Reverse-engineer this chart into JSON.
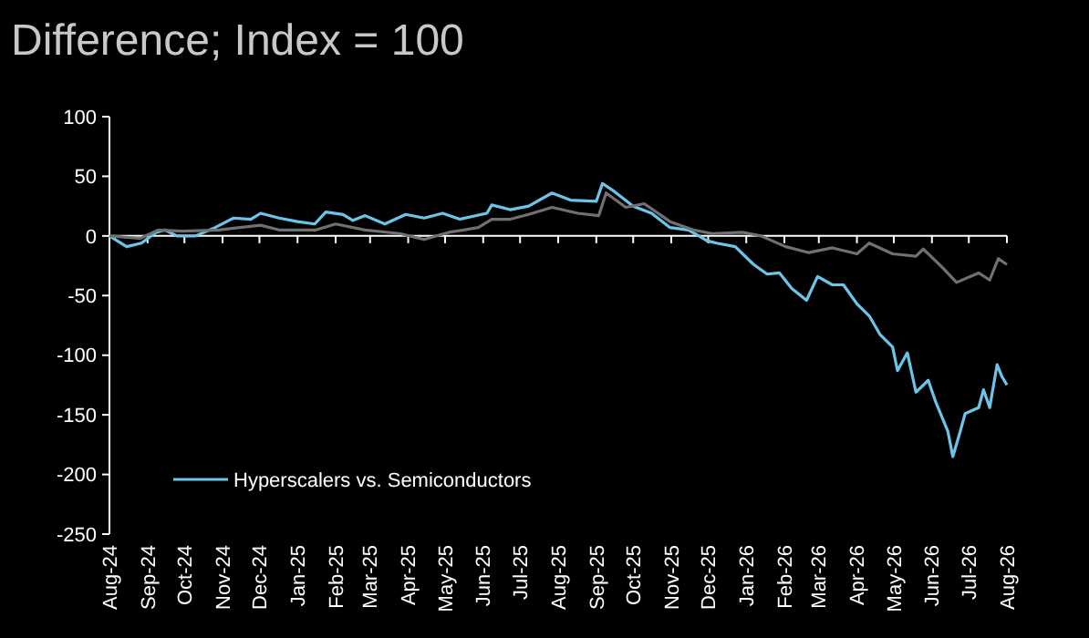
{
  "chart_data": {
    "type": "line",
    "title": "Difference; Index = 100",
    "ylim": [
      -250,
      100
    ],
    "yticks": [
      -250,
      -200,
      -150,
      -100,
      -50,
      0,
      50,
      100
    ],
    "xlim": [
      "2024-08-01",
      "2026-08-01"
    ],
    "xticks": [
      {
        "value": "2024-08-01",
        "label": "Aug-24"
      },
      {
        "value": "2024-09-01",
        "label": "Sep-24"
      },
      {
        "value": "2024-10-01",
        "label": "Oct-24"
      },
      {
        "value": "2024-11-01",
        "label": "Nov-24"
      },
      {
        "value": "2024-12-01",
        "label": "Dec-24"
      },
      {
        "value": "2025-01-01",
        "label": "Jan-25"
      },
      {
        "value": "2025-02-01",
        "label": "Feb-25"
      },
      {
        "value": "2025-03-01",
        "label": "Mar-25"
      },
      {
        "value": "2025-04-01",
        "label": "Apr-25"
      },
      {
        "value": "2025-05-01",
        "label": "May-25"
      },
      {
        "value": "2025-06-01",
        "label": "Jun-25"
      },
      {
        "value": "2025-07-01",
        "label": "Jul-25"
      },
      {
        "value": "2025-08-01",
        "label": "Aug-25"
      },
      {
        "value": "2025-09-01",
        "label": "Sep-25"
      },
      {
        "value": "2025-10-01",
        "label": "Oct-25"
      },
      {
        "value": "2025-11-01",
        "label": "Nov-25"
      },
      {
        "value": "2025-12-01",
        "label": "Dec-25"
      },
      {
        "value": "2026-01-01",
        "label": "Jan-26"
      },
      {
        "value": "2026-02-01",
        "label": "Feb-26"
      },
      {
        "value": "2026-03-01",
        "label": "Mar-26"
      },
      {
        "value": "2026-04-01",
        "label": "Apr-26"
      },
      {
        "value": "2026-05-01",
        "label": "May-26"
      },
      {
        "value": "2026-06-01",
        "label": "Jun-26"
      },
      {
        "value": "2026-07-01",
        "label": "Jul-26"
      },
      {
        "value": "2026-08-01",
        "label": "Aug-26"
      }
    ],
    "legend": "bottom left",
    "series": [
      {
        "name": "Hyperscalers vs. Semiconductors",
        "color": "#6cc5e9",
        "x": [
          "2024-08-01",
          "2024-08-15",
          "2024-08-27",
          "2024-09-08",
          "2024-09-15",
          "2024-09-25",
          "2024-10-10",
          "2024-10-26",
          "2024-11-10",
          "2024-11-24",
          "2024-12-02",
          "2024-12-17",
          "2025-01-01",
          "2025-01-15",
          "2025-01-24",
          "2025-02-07",
          "2025-02-15",
          "2025-02-25",
          "2025-03-13",
          "2025-03-30",
          "2025-04-14",
          "2025-04-29",
          "2025-05-13",
          "2025-06-04",
          "2025-06-08",
          "2025-06-23",
          "2025-07-08",
          "2025-07-27",
          "2025-08-11",
          "2025-09-01",
          "2025-09-06",
          "2025-09-16",
          "2025-10-01",
          "2025-10-16",
          "2025-10-31",
          "2025-11-15",
          "2025-11-30",
          "2025-12-08",
          "2025-12-23",
          "2026-01-07",
          "2026-01-18",
          "2026-01-28",
          "2026-02-07",
          "2026-02-19",
          "2026-02-28",
          "2026-03-12",
          "2026-03-21",
          "2026-04-01",
          "2026-04-11",
          "2026-04-20",
          "2026-04-30",
          "2026-05-04",
          "2026-05-12",
          "2026-05-19",
          "2026-05-29",
          "2026-06-04",
          "2026-06-14",
          "2026-06-18",
          "2026-06-24",
          "2026-06-28",
          "2026-07-09",
          "2026-07-13",
          "2026-07-18",
          "2026-07-24",
          "2026-07-28",
          "2026-08-01"
        ],
        "values": [
          0,
          -9,
          -6,
          3,
          5,
          0,
          0,
          7,
          15,
          14,
          19,
          15,
          12,
          10,
          20,
          18,
          13,
          17,
          10,
          18,
          15,
          19,
          14,
          19,
          26,
          22,
          25,
          36,
          30,
          29,
          44,
          37,
          25,
          19,
          7,
          5,
          -4,
          -6,
          -9,
          -24,
          -32,
          -31,
          -44,
          -54,
          -34,
          -41,
          -41,
          -57,
          -67,
          -83,
          -93,
          -113,
          -98,
          -131,
          -121,
          -139,
          -164,
          -185,
          -164,
          -149,
          -144,
          -129,
          -144,
          -108,
          -118,
          -125
        ]
      },
      {
        "color": "#707070",
        "x": [
          "2024-08-01",
          "2024-08-26",
          "2024-09-10",
          "2024-09-29",
          "2024-10-29",
          "2024-12-02",
          "2024-12-17",
          "2025-01-16",
          "2025-02-01",
          "2025-02-25",
          "2025-03-25",
          "2025-04-14",
          "2025-05-04",
          "2025-05-28",
          "2025-06-08",
          "2025-06-23",
          "2025-07-08",
          "2025-07-27",
          "2025-08-17",
          "2025-09-03",
          "2025-09-09",
          "2025-09-25",
          "2025-10-10",
          "2025-10-31",
          "2025-11-19",
          "2025-12-04",
          "2025-12-29",
          "2026-01-13",
          "2026-02-02",
          "2026-02-21",
          "2026-03-12",
          "2026-04-01",
          "2026-04-11",
          "2026-04-30",
          "2026-05-19",
          "2026-05-25",
          "2026-06-10",
          "2026-06-21",
          "2026-07-09",
          "2026-07-18",
          "2026-07-25",
          "2026-08-01"
        ],
        "values": [
          0,
          -2,
          5,
          4,
          5,
          9,
          5,
          5,
          10,
          5,
          2,
          -3,
          3,
          7,
          14,
          14,
          18,
          24,
          19,
          17,
          36,
          24,
          27,
          12,
          5,
          2,
          3,
          0,
          -9,
          -14,
          -10,
          -15,
          -6,
          -15,
          -17,
          -11,
          -27,
          -39,
          -31,
          -37,
          -19,
          -24
        ]
      }
    ]
  }
}
